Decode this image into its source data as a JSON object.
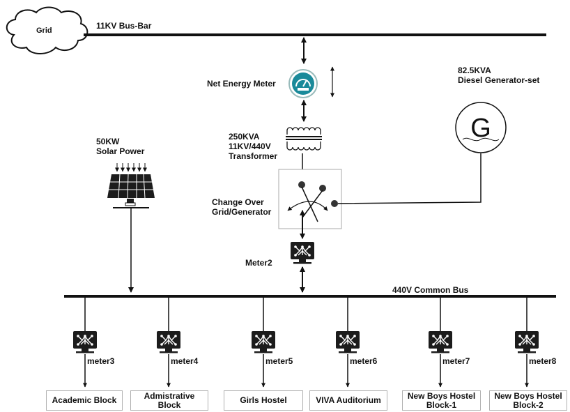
{
  "grid": {
    "label": "Grid"
  },
  "busbar_11kv": {
    "label": "11KV Bus-Bar"
  },
  "net_meter": {
    "label": "Net Energy Meter"
  },
  "diesel": {
    "line1": "82.5KVA",
    "line2": "Diesel Generator-set",
    "symbol": "G"
  },
  "transformer": {
    "line1": "250KVA",
    "line2": "11KV/440V",
    "line3": "Transformer"
  },
  "solar": {
    "line1": "50KW",
    "line2": "Solar Power"
  },
  "changeover": {
    "line1": "Change Over",
    "line2": "Grid/Generator"
  },
  "meter2": {
    "label": "Meter2"
  },
  "common_bus": {
    "label": "440V Common Bus"
  },
  "branches": [
    {
      "meter": "meter3",
      "load_line1": "Academic Block",
      "load_line2": ""
    },
    {
      "meter": "meter4",
      "load_line1": "Admistrative",
      "load_line2": "Block"
    },
    {
      "meter": "meter5",
      "load_line1": "Girls Hostel",
      "load_line2": ""
    },
    {
      "meter": "meter6",
      "load_line1": "VIVA Auditorium",
      "load_line2": ""
    },
    {
      "meter": "meter7",
      "load_line1": "New Boys Hostel",
      "load_line2": "Block-1"
    },
    {
      "meter": "meter8",
      "load_line1": "New Boys Hostel",
      "load_line2": "Block-2"
    }
  ],
  "colors": {
    "line": "#111111",
    "meter_teal": "#1a8a9a",
    "panel": "#1c1c1c",
    "box_border": "#b0b0b0"
  }
}
